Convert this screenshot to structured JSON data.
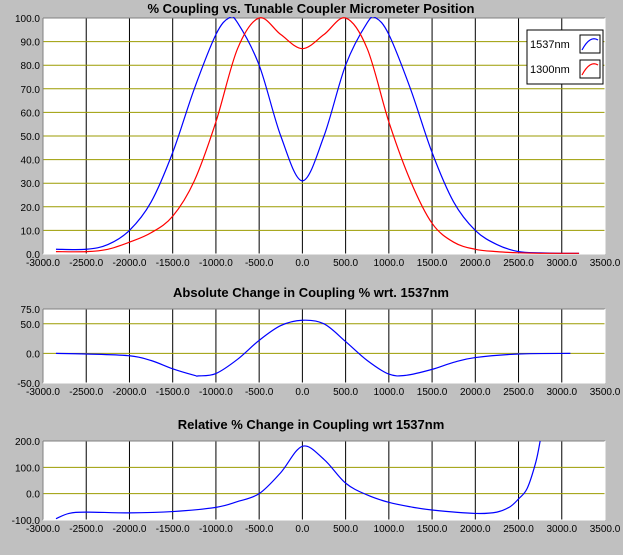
{
  "colors": {
    "window_bg": "#c0c0c0",
    "plot_bg": "#ffffff",
    "vgrid": "#000000",
    "hgrid": "#9b9b00",
    "blue": "#0000ff",
    "red": "#ff0000"
  },
  "chart_data": [
    {
      "type": "line",
      "title": "% Coupling vs. Tunable Coupler Micrometer Position",
      "xlabel": "",
      "ylabel": "",
      "xlim": [
        -3000,
        3500
      ],
      "ylim": [
        0,
        100
      ],
      "x_ticks": [
        "-3000.0",
        "-2500.0",
        "-2000.0",
        "-1500.0",
        "-1000.0",
        "-500.0",
        "0.0",
        "500.0",
        "1000.0",
        "1500.0",
        "2000.0",
        "2500.0",
        "3000.0",
        "3500.0"
      ],
      "y_ticks": [
        "0.0",
        "10.0",
        "20.0",
        "30.0",
        "40.0",
        "50.0",
        "60.0",
        "70.0",
        "80.0",
        "90.0",
        "100.0"
      ],
      "legend": "top-right",
      "grid": true,
      "series": [
        {
          "name": "1537nm",
          "color": "#0000ff",
          "x": [
            -2850,
            -2500,
            -2250,
            -2000,
            -1750,
            -1500,
            -1250,
            -1000,
            -850,
            -750,
            -500,
            -250,
            0,
            250,
            500,
            750,
            850,
            1000,
            1250,
            1500,
            1750,
            2000,
            2250,
            2500,
            2750,
            3000,
            3200
          ],
          "y": [
            2,
            2,
            4,
            10,
            22,
            43,
            70,
            93,
            100,
            98,
            80,
            50,
            31,
            50,
            80,
            98,
            100,
            93,
            70,
            43,
            22,
            10,
            4,
            1,
            0.5,
            0.3,
            0.3
          ]
        },
        {
          "name": "1300nm",
          "color": "#ff0000",
          "x": [
            -2850,
            -2500,
            -2250,
            -2000,
            -1750,
            -1500,
            -1250,
            -1000,
            -750,
            -500,
            -250,
            0,
            250,
            500,
            750,
            1000,
            1250,
            1500,
            1750,
            2000,
            2250,
            2500,
            2750,
            3000,
            3200
          ],
          "y": [
            1,
            1,
            2,
            5,
            9,
            16,
            31,
            56,
            87,
            100,
            93,
            87,
            93,
            100,
            87,
            56,
            31,
            13,
            5,
            2,
            1,
            0.5,
            0.3,
            0.3,
            0.3
          ]
        }
      ]
    },
    {
      "type": "line",
      "title": "Absolute Change in Coupling % wrt. 1537nm",
      "xlabel": "",
      "ylabel": "",
      "xlim": [
        -3000,
        3500
      ],
      "ylim": [
        -50,
        75
      ],
      "x_ticks": [
        "-3000.0",
        "-2500.0",
        "-2000.0",
        "-1500.0",
        "-1000.0",
        "-500.0",
        "0.0",
        "500.0",
        "1000.0",
        "1500.0",
        "2000.0",
        "2500.0",
        "3000.0",
        "3500.0"
      ],
      "y_ticks": [
        "-50.0",
        "0.0",
        "50.0",
        "75.0"
      ],
      "grid": true,
      "series": [
        {
          "color": "#0000ff",
          "x": [
            -2850,
            -2500,
            -2000,
            -1750,
            -1500,
            -1250,
            -1200,
            -1000,
            -750,
            -500,
            -250,
            0,
            250,
            500,
            750,
            1000,
            1200,
            1500,
            1750,
            2000,
            2500,
            3100
          ],
          "y": [
            0,
            -1,
            -4,
            -12,
            -26,
            -37,
            -38,
            -34,
            -10,
            22,
            47,
            56,
            50,
            20,
            -12,
            -35,
            -37,
            -27,
            -15,
            -7,
            -1,
            0
          ]
        }
      ]
    },
    {
      "type": "line",
      "title": "Relative % Change in Coupling wrt 1537nm",
      "xlabel": "",
      "ylabel": "",
      "xlim": [
        -3000,
        3500
      ],
      "ylim": [
        -100,
        200
      ],
      "x_ticks": [
        "-3000.0",
        "-2500.0",
        "-2000.0",
        "-1500.0",
        "-1000.0",
        "-500.0",
        "0.0",
        "500.0",
        "1000.0",
        "1500.0",
        "2000.0",
        "2500.0",
        "3000.0",
        "3500.0"
      ],
      "y_ticks": [
        "-100.0",
        "0.0",
        "100.0",
        "200.0"
      ],
      "grid": true,
      "series": [
        {
          "color": "#0000ff",
          "x": [
            -2850,
            -2700,
            -2500,
            -2000,
            -1500,
            -1000,
            -750,
            -500,
            -250,
            0,
            250,
            500,
            750,
            1000,
            1250,
            1500,
            2000,
            2250,
            2400,
            2500,
            2600,
            2700,
            2750
          ],
          "y": [
            -95,
            -75,
            -70,
            -73,
            -68,
            -52,
            -30,
            0,
            80,
            180,
            130,
            40,
            -5,
            -33,
            -50,
            -62,
            -75,
            -70,
            -50,
            -20,
            20,
            120,
            200
          ]
        }
      ]
    }
  ]
}
